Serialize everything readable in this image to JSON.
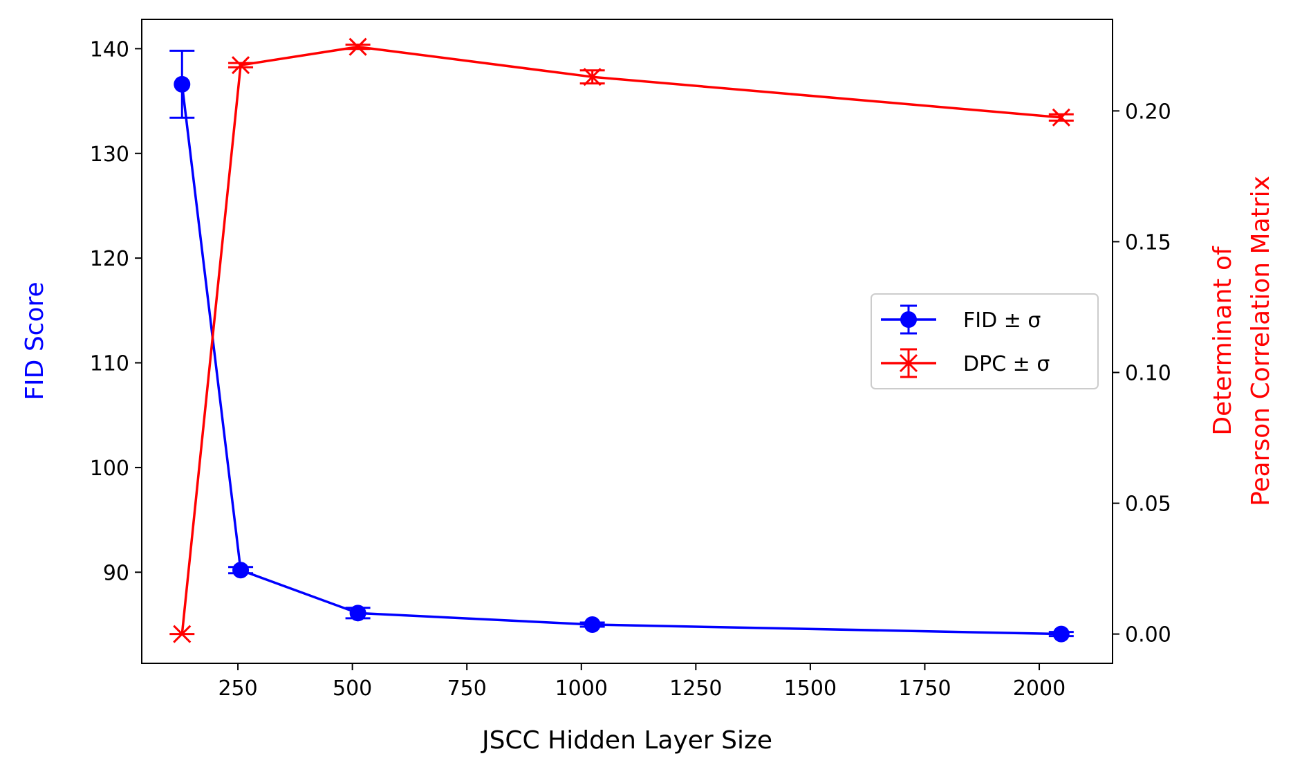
{
  "chart_data": {
    "type": "line",
    "x": [
      128,
      256,
      512,
      1024,
      2048
    ],
    "xlabel": "JSCC Hidden Layer Size",
    "xlim": [
      40,
      2160
    ],
    "xticks": [
      250,
      500,
      750,
      1000,
      1250,
      1500,
      1750,
      2000
    ],
    "xtick_labels": [
      "250",
      "500",
      "750",
      "1000",
      "1250",
      "1500",
      "1750",
      "2000"
    ],
    "left_axis": {
      "label": "FID Score",
      "color": "#0000ff",
      "ylim": [
        81.3,
        142.8
      ],
      "ticks": [
        90,
        100,
        110,
        120,
        130,
        140
      ],
      "tick_labels": [
        "90",
        "100",
        "110",
        "120",
        "130",
        "140"
      ]
    },
    "right_axis": {
      "label_line1": "Determinant of",
      "label_line2": "Pearson Correlation Matrix",
      "color": "#ff0000",
      "ylim": [
        -0.0112,
        0.235
      ],
      "ticks": [
        0.0,
        0.05,
        0.1,
        0.15,
        0.2
      ],
      "tick_labels": [
        "0.00",
        "0.05",
        "0.10",
        "0.15",
        "0.20"
      ]
    },
    "series": [
      {
        "name": "FID ± σ",
        "axis": "left",
        "color": "#0000ff",
        "marker": "circle",
        "values": [
          136.6,
          90.2,
          86.1,
          85.0,
          84.1
        ],
        "errors": [
          3.2,
          0.3,
          0.5,
          0.2,
          0.2
        ]
      },
      {
        "name": "DPC ± σ",
        "axis": "right",
        "color": "#ff0000",
        "marker": "x",
        "values": [
          0.0,
          0.2175,
          0.2245,
          0.213,
          0.1975
        ],
        "errors": [
          0.0,
          0.0008,
          0.0008,
          0.0025,
          0.0012
        ]
      }
    ],
    "legend": {
      "position": "center-right",
      "entries": [
        "FID ± σ",
        "DPC ± σ"
      ]
    }
  }
}
